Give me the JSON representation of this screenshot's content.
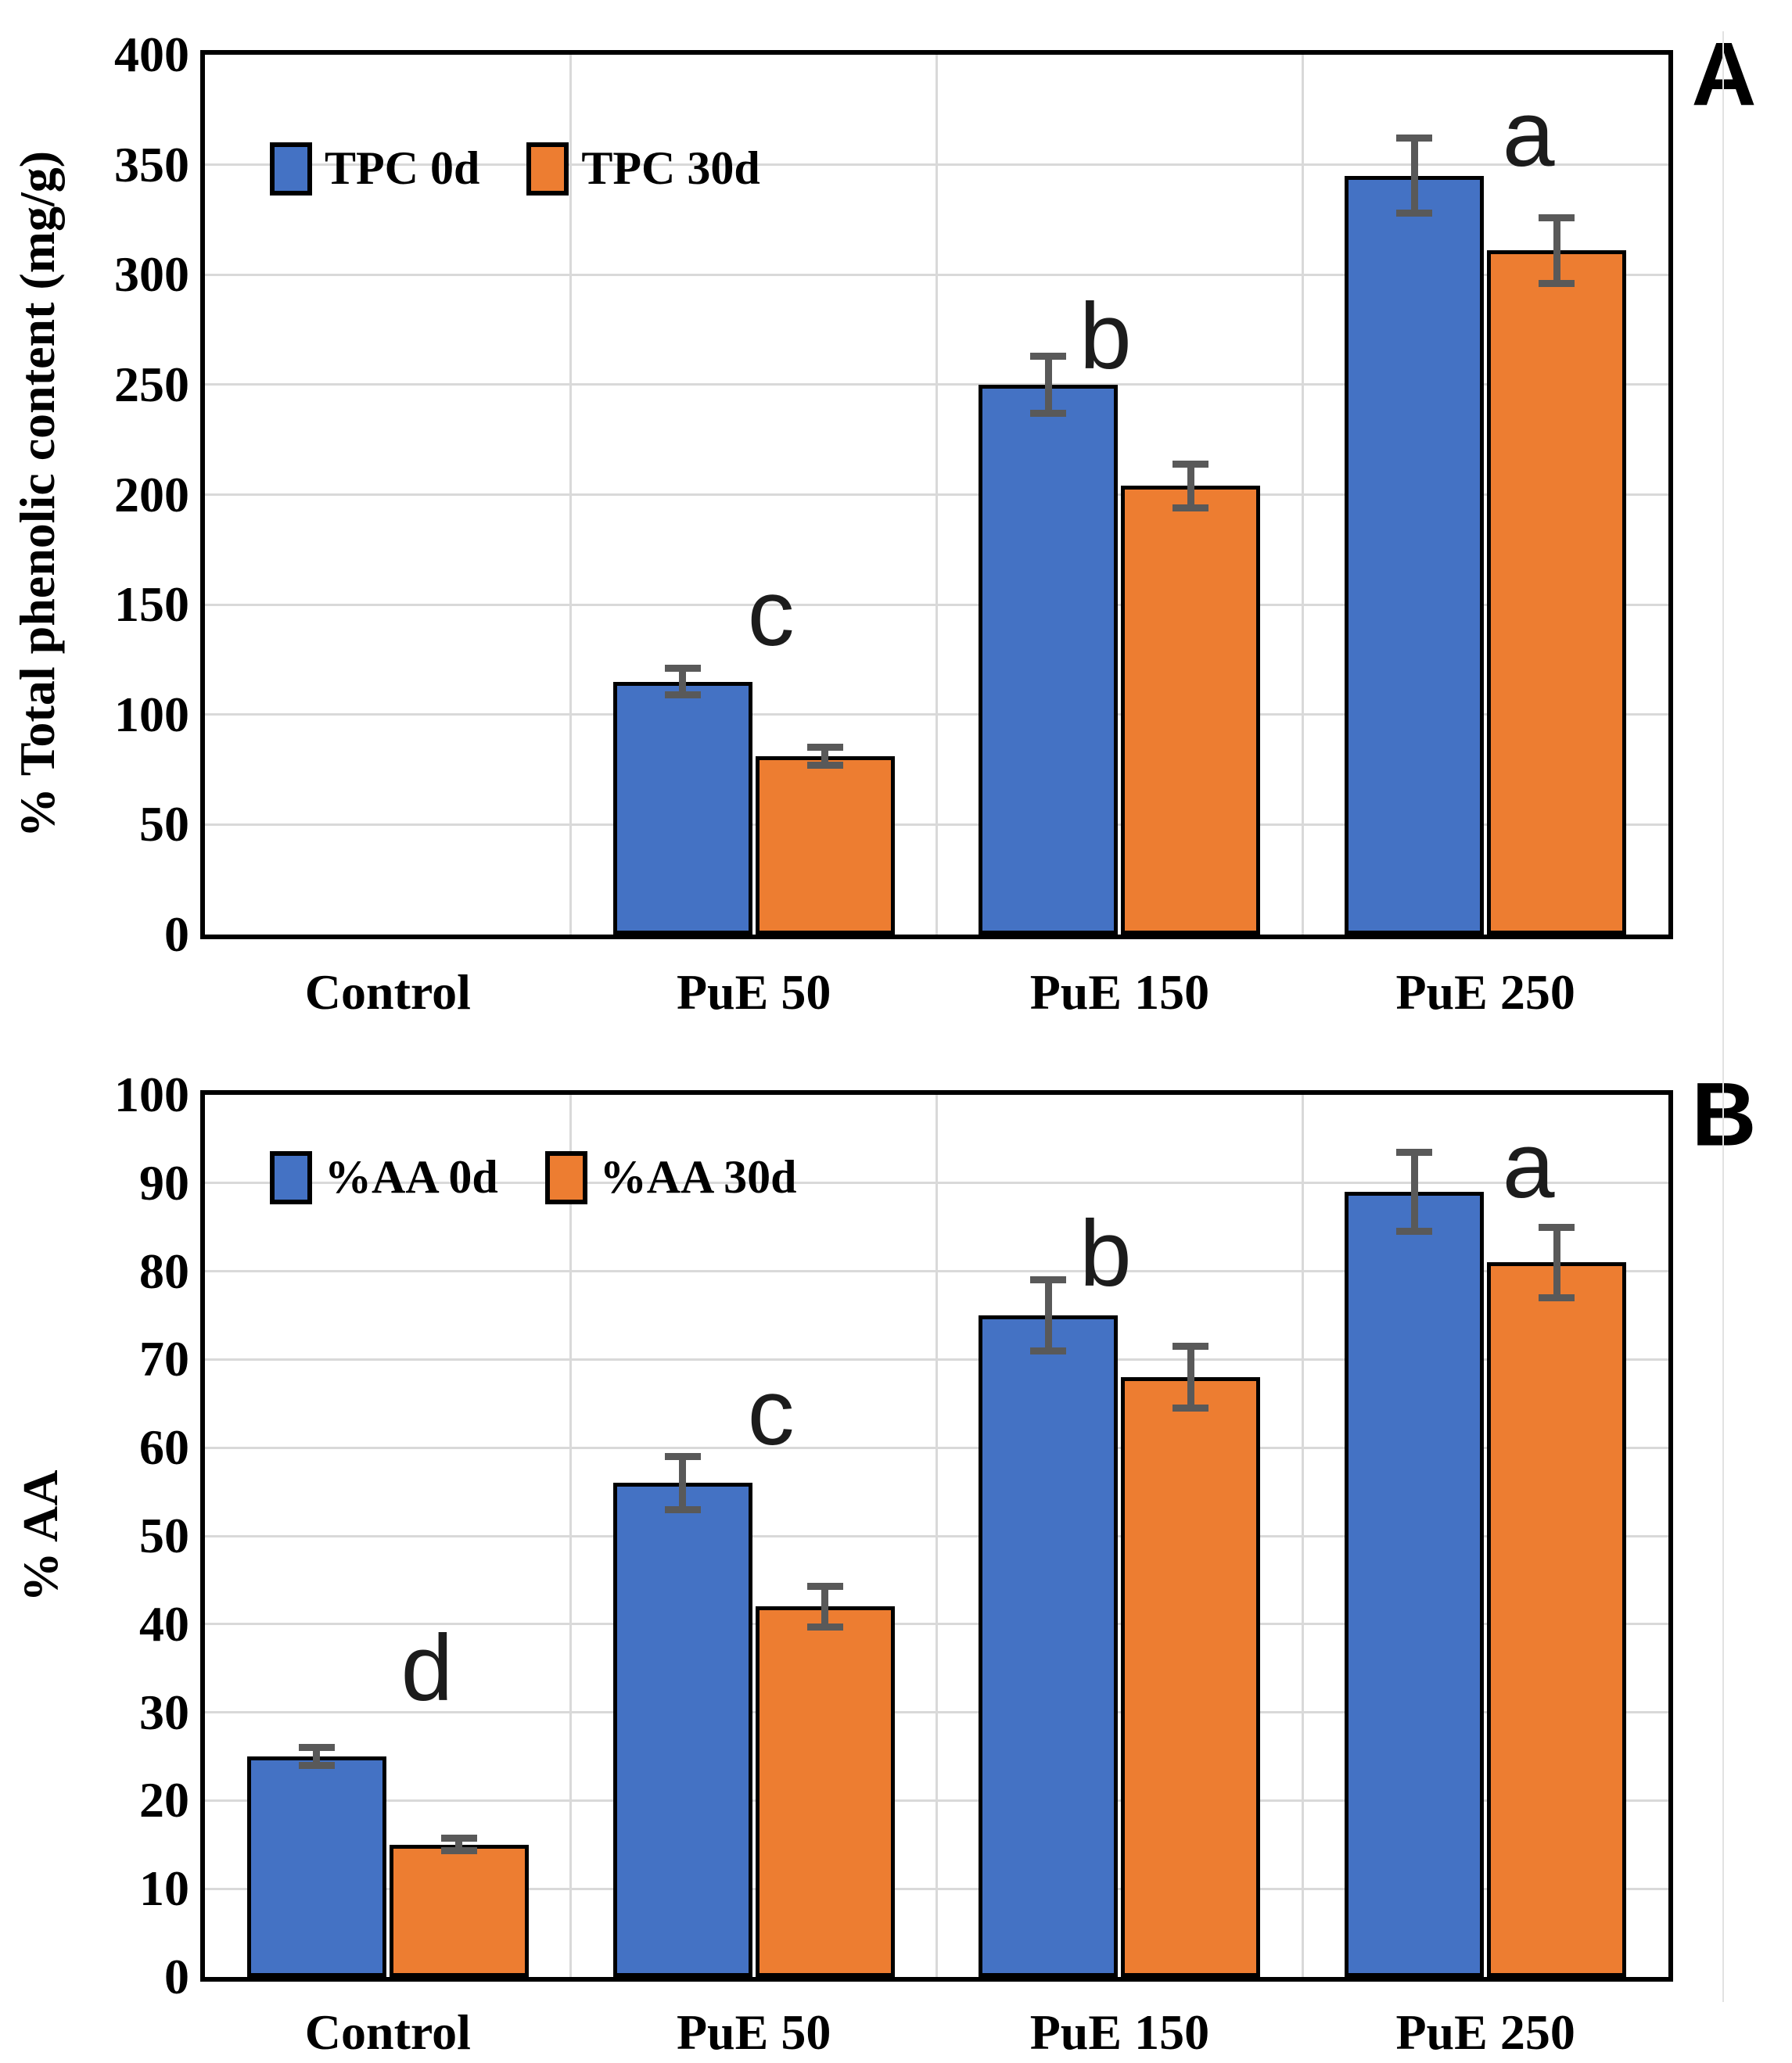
{
  "styles": {
    "series_blue": "#4472C4",
    "series_orange": "#ED7D31",
    "bar_border_color": "#000000",
    "error_bar_color": "#595959",
    "gridline_color": "#D9D9D9",
    "axis_color": "#000000",
    "background": "#FFFFFF"
  },
  "chart_data": [
    {
      "type": "bar",
      "panel_label": "A",
      "title": "",
      "xlabel": "",
      "ylabel": "% Total phenolic content (mg/g)",
      "ylim": [
        0,
        400
      ],
      "ytick_step": 50,
      "ytick_labels": [
        "0",
        "50",
        "100",
        "150",
        "200",
        "250",
        "300",
        "350",
        "400"
      ],
      "grid": true,
      "legend_position": "inside top-left",
      "categories": [
        "Control",
        "PuE 50",
        "PuE 150",
        "PuE 250"
      ],
      "series": [
        {
          "name": "TPC 0d",
          "color": "#4472C4",
          "values": [
            0,
            115,
            250,
            345
          ],
          "errors": [
            0,
            6,
            13,
            17
          ]
        },
        {
          "name": "TPC 30d",
          "color": "#ED7D31",
          "values": [
            0,
            81,
            204,
            311
          ],
          "errors": [
            0,
            4,
            10,
            15
          ]
        }
      ],
      "sig_letters": [
        {
          "text": "c",
          "category": "PuE 50",
          "y_value": 146
        },
        {
          "text": "b",
          "category": "PuE 150",
          "y_value": 272
        },
        {
          "text": "a",
          "category": "PuE 250",
          "y_value": 364
        }
      ]
    },
    {
      "type": "bar",
      "panel_label": "B",
      "title": "",
      "xlabel": "",
      "ylabel": "% AA",
      "ylim": [
        0,
        100
      ],
      "ytick_step": 10,
      "ytick_labels": [
        "0",
        "10",
        "20",
        "30",
        "40",
        "50",
        "60",
        "70",
        "80",
        "90",
        "100"
      ],
      "grid": true,
      "legend_position": "inside top-left",
      "categories": [
        "Control",
        "PuE 50",
        "PuE 150",
        "PuE 250"
      ],
      "series": [
        {
          "name": "%AA 0d",
          "color": "#4472C4",
          "values": [
            25,
            56,
            75,
            89
          ],
          "errors": [
            1,
            3,
            4,
            4.5
          ]
        },
        {
          "name": "%AA 30d",
          "color": "#ED7D31",
          "values": [
            15,
            42,
            68,
            81
          ],
          "errors": [
            0.7,
            2.3,
            3.5,
            4
          ]
        }
      ],
      "sig_letters": [
        {
          "text": "d",
          "category": "Control",
          "y_value": 35
        },
        {
          "text": "c",
          "category": "PuE 50",
          "y_value": 64
        },
        {
          "text": "b",
          "category": "PuE 150",
          "y_value": 82
        },
        {
          "text": "a",
          "category": "PuE 250",
          "y_value": 92
        }
      ]
    }
  ]
}
